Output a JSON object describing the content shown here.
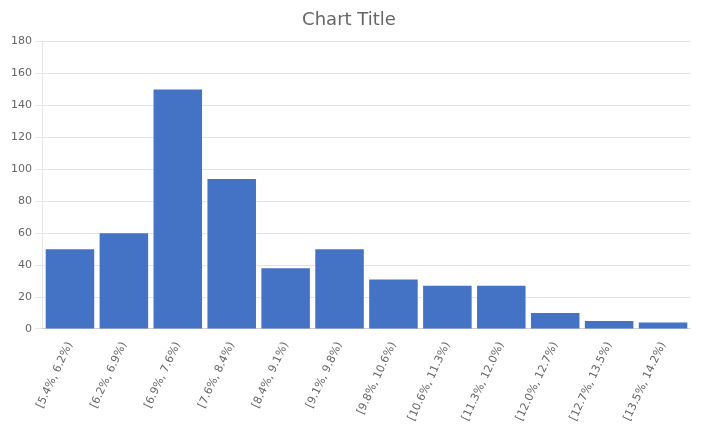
{
  "chart_data": {
    "type": "bar",
    "title": "Chart Title",
    "categories": [
      "[5.4%, 6.2%)",
      "[6.2%, 6.9%)",
      "[6.9%, 7.6%)",
      "[7.6%, 8.4%)",
      "[8.4%, 9.1%)",
      "[9.1%, 9.8%)",
      "[9.8%, 10.6%)",
      "[10.6%, 11.3%)",
      "[11.3%, 12.0%)",
      "[12.0%, 12.7%)",
      "[12.7%, 13.5%)",
      "[13.5%, 14.2%)"
    ],
    "values": [
      50,
      60,
      150,
      94,
      38,
      50,
      31,
      27,
      27,
      10,
      5,
      4
    ],
    "color": "#4472C4",
    "ylim": [
      0,
      180
    ],
    "yticks": [
      0,
      20,
      40,
      60,
      80,
      100,
      120,
      140,
      160,
      180
    ],
    "grid": true
  }
}
